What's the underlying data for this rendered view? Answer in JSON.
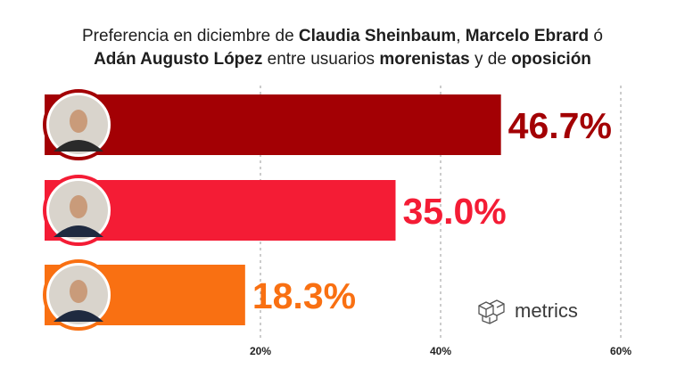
{
  "title": {
    "line1": [
      {
        "text": "Preferencia en diciembre de ",
        "bold": false
      },
      {
        "text": "Claudia Sheinbaum",
        "bold": true
      },
      {
        "text": ", ",
        "bold": false
      },
      {
        "text": "Marcelo Ebrard",
        "bold": true
      },
      {
        "text": " ó",
        "bold": false
      }
    ],
    "line2": [
      {
        "text": "Adán Augusto López",
        "bold": true
      },
      {
        "text": " entre usuarios ",
        "bold": false
      },
      {
        "text": "morenistas",
        "bold": true
      },
      {
        "text": " y de ",
        "bold": false
      },
      {
        "text": "oposición",
        "bold": true
      }
    ]
  },
  "logo": {
    "text": "metrics",
    "icon": "cube-grid-icon"
  },
  "chart_data": {
    "type": "bar",
    "orientation": "horizontal",
    "categories": [
      "Claudia Sheinbaum",
      "Marcelo Ebrard",
      "Adán Augusto López"
    ],
    "values": [
      46.7,
      35.0,
      18.3
    ],
    "value_labels": [
      "46.7%",
      "35.0%",
      "18.3%"
    ],
    "colors": [
      "#a30004",
      "#f41c35",
      "#f97012"
    ],
    "xlim": [
      0,
      60
    ],
    "xticks": [
      20,
      40,
      60
    ],
    "xtick_labels": [
      "20%",
      "40%",
      "60%"
    ],
    "grid": "vertical dashed",
    "category_markers": [
      "photo-avatar",
      "photo-avatar",
      "photo-avatar"
    ]
  }
}
